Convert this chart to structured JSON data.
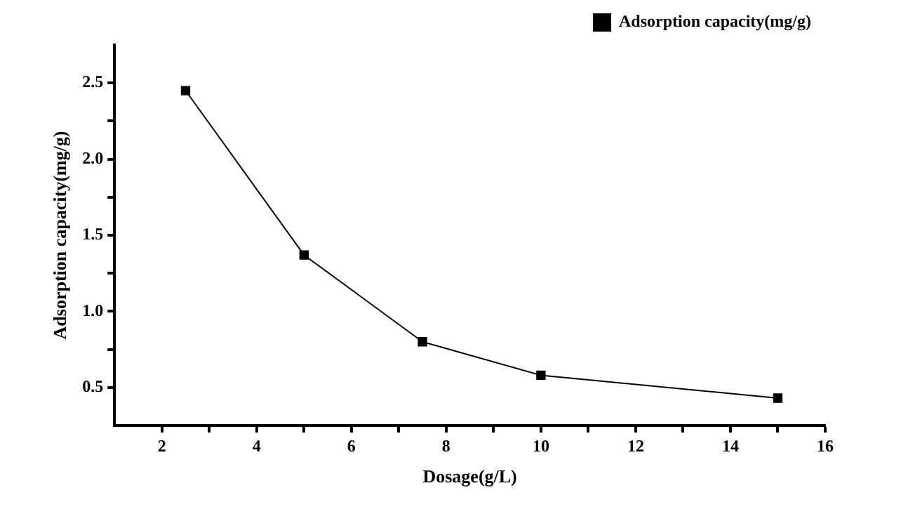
{
  "chart_data": {
    "type": "line",
    "xlabel": "Dosage(g/L)",
    "ylabel": "Adsorption capacity(mg/g)",
    "x": [
      2.5,
      5,
      7.5,
      10,
      15
    ],
    "series": [
      {
        "name": "Adsorption capacity(mg/g)",
        "color": "#000000",
        "values": [
          2.45,
          1.37,
          0.8,
          0.58,
          0.43
        ]
      }
    ],
    "xlim": [
      1,
      16
    ],
    "xticks": [
      2,
      {
        "value": 3,
        "label": null
      },
      4,
      {
        "value": 5,
        "label": null
      },
      6,
      {
        "value": 7,
        "label": null
      },
      8,
      {
        "value": 9,
        "label": null
      },
      10,
      {
        "value": 11,
        "label": null
      },
      12,
      {
        "value": 13,
        "label": null
      },
      14,
      {
        "value": 15,
        "label": null
      },
      16
    ],
    "ylim": [
      0.25,
      2.75
    ],
    "yticks": [
      0.5,
      {
        "value": 0.75,
        "label": null
      },
      {
        "value": 1,
        "label": "1.0"
      },
      {
        "value": 1.25,
        "label": null
      },
      1.5,
      {
        "value": 1.75,
        "label": null
      },
      {
        "value": 2,
        "label": "2.0"
      },
      {
        "value": 2.25,
        "label": null
      },
      2.5
    ],
    "grid": false,
    "legend": "top right",
    "marker": "square",
    "line_style": "solid"
  }
}
